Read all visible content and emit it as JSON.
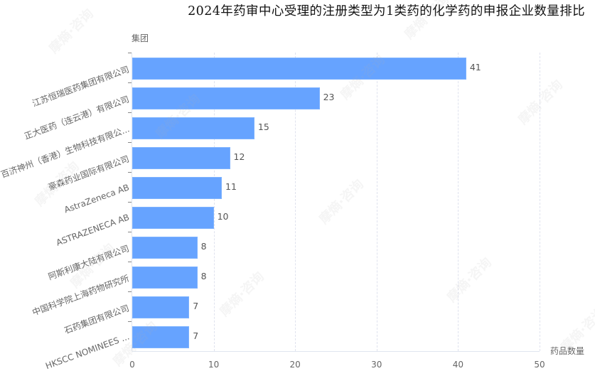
{
  "chart_data": {
    "type": "bar",
    "orientation": "horizontal",
    "title": "2024年药审中心受理的注册类型为1类药的化学药的申报企业数量排比",
    "xlabel": "药品数量",
    "ylabel": "集团",
    "xlim": [
      0,
      50
    ],
    "x_ticks": [
      "0",
      "10",
      "20",
      "30",
      "40",
      "50"
    ],
    "grid": {
      "vertical_dashed": true,
      "horizontal": false
    },
    "legend": null,
    "bar_color": "#66a3ff",
    "categories": [
      "江苏恒瑞医药集团有限公司",
      "正大医药（连云港）有限公司",
      "百济神州（香港）生物科技有限公...",
      "豪森药业国际有限公司",
      "AstraZeneca AB",
      "ASTRAZENECA AB",
      "阿斯利康大陆有限公司",
      "中国科学院上海药物研究所",
      "石药集团有限公司",
      "HKSCC NOMINEES ..."
    ],
    "values": [
      41,
      23,
      15,
      12,
      11,
      10,
      8,
      8,
      7,
      7
    ],
    "value_labels": [
      "41",
      "23",
      "15",
      "12",
      "11",
      "10",
      "8",
      "8",
      "7",
      "7"
    ]
  },
  "watermark": "摩熵·咨询"
}
